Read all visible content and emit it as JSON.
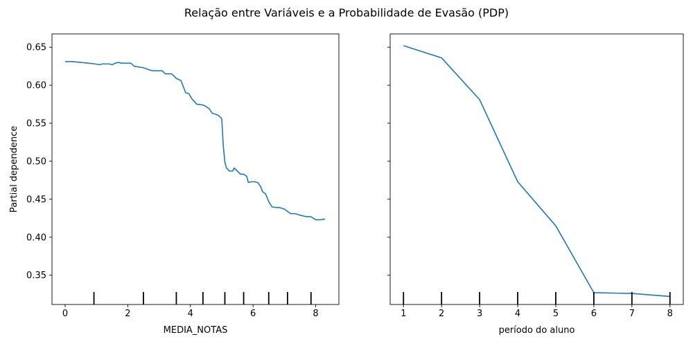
{
  "figure": {
    "title": "Relação entre Variáveis e a Probabilidade de Evasão (PDP)"
  },
  "chart_data": [
    {
      "type": "line",
      "title": "",
      "xlabel": "MEDIA_NOTAS",
      "ylabel": "Partial dependence",
      "xlim": [
        -0.42,
        8.74
      ],
      "ylim": [
        0.3115,
        0.6675
      ],
      "xticks": [
        0,
        2,
        4,
        6,
        8
      ],
      "xtick_labels": [
        "0",
        "2",
        "4",
        "6",
        "8"
      ],
      "yticks": [
        0.35,
        0.4,
        0.45,
        0.5,
        0.55,
        0.6,
        0.65
      ],
      "ytick_labels": [
        "0.35",
        "0.40",
        "0.45",
        "0.50",
        "0.55",
        "0.60",
        "0.65"
      ],
      "grid": false,
      "line_color": "#1f77b4",
      "series": [
        {
          "x": [
            0.0,
            0.25,
            0.5,
            0.75,
            0.95,
            1.1,
            1.2,
            1.4,
            1.5,
            1.6,
            1.7,
            1.8,
            1.95,
            2.1,
            2.2,
            2.5,
            2.7,
            2.8,
            2.9,
            3.0,
            3.1,
            3.2,
            3.3,
            3.4,
            3.55,
            3.7,
            3.85,
            3.95,
            4.05,
            4.2,
            4.4,
            4.5,
            4.6,
            4.7,
            4.8,
            4.9,
            5.0,
            5.05,
            5.1,
            5.15,
            5.25,
            5.35,
            5.4,
            5.5,
            5.6,
            5.7,
            5.8,
            5.85,
            5.95,
            6.05,
            6.15,
            6.25,
            6.3,
            6.4,
            6.5,
            6.6,
            6.75,
            6.85,
            7.0,
            7.1,
            7.2,
            7.35,
            7.5,
            7.7,
            7.85,
            8.0,
            8.15,
            8.3
          ],
          "y": [
            0.631,
            0.631,
            0.63,
            0.629,
            0.628,
            0.627,
            0.628,
            0.628,
            0.627,
            0.629,
            0.63,
            0.629,
            0.629,
            0.629,
            0.625,
            0.623,
            0.62,
            0.619,
            0.619,
            0.619,
            0.619,
            0.615,
            0.615,
            0.615,
            0.609,
            0.606,
            0.59,
            0.589,
            0.582,
            0.575,
            0.574,
            0.572,
            0.569,
            0.563,
            0.562,
            0.56,
            0.556,
            0.52,
            0.499,
            0.491,
            0.487,
            0.487,
            0.491,
            0.487,
            0.483,
            0.483,
            0.48,
            0.472,
            0.473,
            0.473,
            0.472,
            0.466,
            0.46,
            0.457,
            0.447,
            0.44,
            0.439,
            0.439,
            0.437,
            0.434,
            0.431,
            0.431,
            0.429,
            0.427,
            0.427,
            0.423,
            0.423,
            0.424
          ]
        }
      ],
      "deciles": [
        0.92,
        2.5,
        3.55,
        4.4,
        5.1,
        5.7,
        6.5,
        7.1,
        7.85
      ]
    },
    {
      "type": "line",
      "title": "",
      "xlabel": "período do aluno",
      "ylabel": "",
      "xlim": [
        0.65,
        8.35
      ],
      "ylim": [
        0.3115,
        0.6675
      ],
      "xticks": [
        1,
        2,
        3,
        4,
        5,
        6,
        7,
        8
      ],
      "xtick_labels": [
        "1",
        "2",
        "3",
        "4",
        "5",
        "6",
        "7",
        "8"
      ],
      "yticks": [
        0.35,
        0.4,
        0.45,
        0.5,
        0.55,
        0.6,
        0.65
      ],
      "ytick_labels": [],
      "grid": false,
      "line_color": "#1f77b4",
      "series": [
        {
          "x": [
            1,
            2,
            3,
            4,
            5,
            6,
            7,
            8
          ],
          "y": [
            0.652,
            0.636,
            0.581,
            0.473,
            0.415,
            0.327,
            0.326,
            0.322
          ]
        }
      ],
      "deciles": [
        1,
        2,
        3,
        4,
        5,
        6,
        7,
        8
      ]
    }
  ]
}
